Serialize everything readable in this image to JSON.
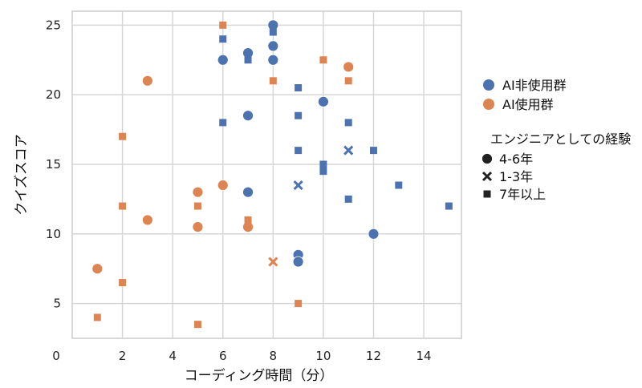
{
  "chart_data": {
    "type": "scatter",
    "title": "",
    "xlabel": "コーディング時間（分）",
    "ylabel": "クイズスコア",
    "xlim": [
      0,
      15.5
    ],
    "ylim": [
      2.5,
      26
    ],
    "xticks": [
      0,
      2,
      4,
      6,
      8,
      10,
      12,
      14
    ],
    "yticks": [
      5,
      10,
      15,
      20,
      25
    ],
    "grid": true,
    "legend_position": "right",
    "colors": {
      "non_ai": "#4C72B0",
      "ai": "#DD8452"
    },
    "legend": {
      "hue_entries": [
        {
          "label": "AI非使用群",
          "color": "#4C72B0"
        },
        {
          "label": "AI使用群",
          "color": "#DD8452"
        }
      ],
      "style_title": "エンジニアとしての経験",
      "style_entries": [
        {
          "label": "4-6年",
          "marker": "circle"
        },
        {
          "label": "1-3年",
          "marker": "x"
        },
        {
          "label": "7年以上",
          "marker": "square"
        }
      ]
    },
    "series": [
      {
        "name": "AI非使用群",
        "color": "#4C72B0",
        "points": [
          {
            "x": 6,
            "y": 22.5,
            "m": "circle"
          },
          {
            "x": 7,
            "y": 23,
            "m": "circle"
          },
          {
            "x": 7,
            "y": 18.5,
            "m": "circle"
          },
          {
            "x": 8,
            "y": 25,
            "m": "circle"
          },
          {
            "x": 8,
            "y": 23.5,
            "m": "circle"
          },
          {
            "x": 8,
            "y": 22.5,
            "m": "circle"
          },
          {
            "x": 10,
            "y": 19.5,
            "m": "circle"
          },
          {
            "x": 9,
            "y": 8.5,
            "m": "circle"
          },
          {
            "x": 9,
            "y": 8,
            "m": "circle"
          },
          {
            "x": 12,
            "y": 10,
            "m": "circle"
          },
          {
            "x": 7,
            "y": 13,
            "m": "circle"
          },
          {
            "x": 9,
            "y": 13.5,
            "m": "x"
          },
          {
            "x": 11,
            "y": 16,
            "m": "x"
          },
          {
            "x": 6,
            "y": 24,
            "m": "square"
          },
          {
            "x": 6,
            "y": 18,
            "m": "square"
          },
          {
            "x": 7,
            "y": 22.5,
            "m": "square"
          },
          {
            "x": 8,
            "y": 24.5,
            "m": "square"
          },
          {
            "x": 9,
            "y": 20.5,
            "m": "square"
          },
          {
            "x": 9,
            "y": 18.5,
            "m": "square"
          },
          {
            "x": 9,
            "y": 16,
            "m": "square"
          },
          {
            "x": 10,
            "y": 15,
            "m": "square"
          },
          {
            "x": 10,
            "y": 14.5,
            "m": "square"
          },
          {
            "x": 11,
            "y": 18,
            "m": "square"
          },
          {
            "x": 11,
            "y": 12.5,
            "m": "square"
          },
          {
            "x": 12,
            "y": 16,
            "m": "square"
          },
          {
            "x": 13,
            "y": 13.5,
            "m": "square"
          },
          {
            "x": 15,
            "y": 12,
            "m": "square"
          }
        ]
      },
      {
        "name": "AI使用群",
        "color": "#DD8452",
        "points": [
          {
            "x": 1,
            "y": 7.5,
            "m": "circle"
          },
          {
            "x": 3,
            "y": 21,
            "m": "circle"
          },
          {
            "x": 3,
            "y": 11,
            "m": "circle"
          },
          {
            "x": 5,
            "y": 13,
            "m": "circle"
          },
          {
            "x": 5,
            "y": 10.5,
            "m": "circle"
          },
          {
            "x": 6,
            "y": 13.5,
            "m": "circle"
          },
          {
            "x": 7,
            "y": 10.5,
            "m": "circle"
          },
          {
            "x": 11,
            "y": 22,
            "m": "circle"
          },
          {
            "x": 8,
            "y": 8,
            "m": "x"
          },
          {
            "x": 1,
            "y": 4,
            "m": "square"
          },
          {
            "x": 2,
            "y": 17,
            "m": "square"
          },
          {
            "x": 2,
            "y": 12,
            "m": "square"
          },
          {
            "x": 2,
            "y": 6.5,
            "m": "square"
          },
          {
            "x": 5,
            "y": 12,
            "m": "square"
          },
          {
            "x": 5,
            "y": 3.5,
            "m": "square"
          },
          {
            "x": 6,
            "y": 25,
            "m": "square"
          },
          {
            "x": 7,
            "y": 11,
            "m": "square"
          },
          {
            "x": 8,
            "y": 21,
            "m": "square"
          },
          {
            "x": 9,
            "y": 5,
            "m": "square"
          },
          {
            "x": 10,
            "y": 22.5,
            "m": "square"
          },
          {
            "x": 11,
            "y": 21,
            "m": "square"
          }
        ]
      }
    ]
  }
}
